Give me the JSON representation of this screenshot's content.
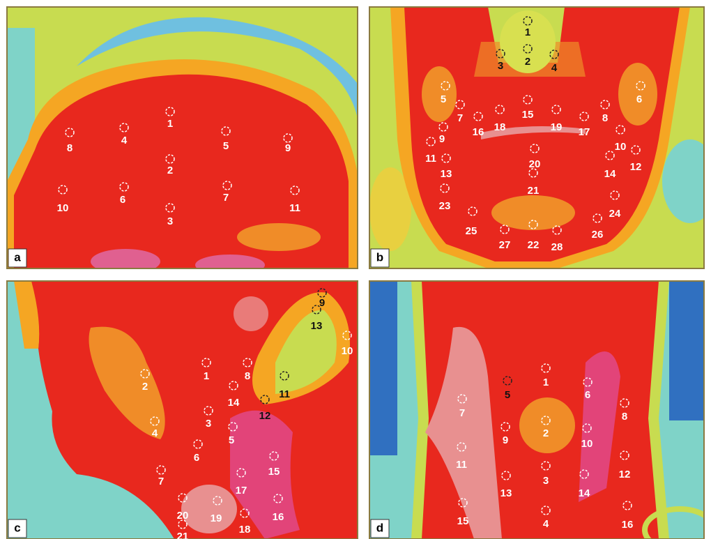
{
  "panels": [
    {
      "letter": "a",
      "points": [
        1,
        2,
        3,
        4,
        5,
        6,
        7,
        8,
        9,
        10,
        11
      ]
    },
    {
      "letter": "b",
      "points": [
        1,
        2,
        3,
        4,
        5,
        6,
        7,
        8,
        9,
        10,
        11,
        12,
        13,
        14,
        15,
        16,
        17,
        18,
        19,
        20,
        21,
        22,
        23,
        24,
        25,
        26,
        27,
        28
      ]
    },
    {
      "letter": "c",
      "points": [
        1,
        2,
        3,
        4,
        5,
        6,
        7,
        8,
        9,
        10,
        11,
        12,
        13,
        14,
        15,
        16,
        17,
        18,
        19,
        20,
        21
      ]
    },
    {
      "letter": "d",
      "points": [
        1,
        2,
        3,
        4,
        5,
        6,
        7,
        8,
        9,
        10,
        11,
        12,
        13,
        14,
        15,
        16
      ]
    }
  ]
}
